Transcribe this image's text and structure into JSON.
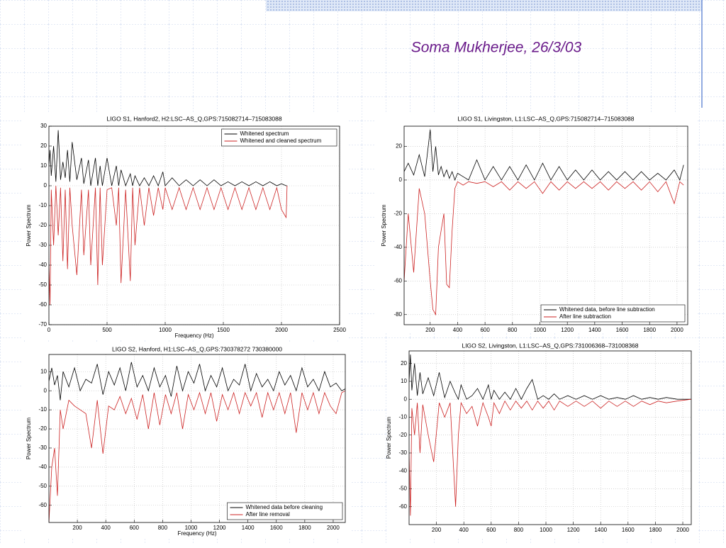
{
  "slide": {
    "title": "Soma Mukherjee, 26/3/03"
  },
  "chart_data": [
    {
      "type": "line",
      "title": "LIGO S1, Hanford2, H2:LSC–AS_Q,GPS:715082714–715083088",
      "xlabel": "Frequency (Hz)",
      "ylabel": "Power Spectrum",
      "x": [
        0,
        10,
        20,
        40,
        60,
        80,
        100,
        120,
        140,
        160,
        180,
        200,
        240,
        280,
        300,
        340,
        360,
        400,
        420,
        440,
        460,
        500,
        540,
        580,
        600,
        620,
        660,
        700,
        720,
        740,
        780,
        820,
        860,
        900,
        940,
        980,
        1000,
        1060,
        1120,
        1180,
        1240,
        1300,
        1360,
        1420,
        1480,
        1540,
        1600,
        1660,
        1720,
        1780,
        1840,
        1900,
        1960,
        2000,
        2040,
        2048
      ],
      "series": [
        {
          "name": "Whitened spectrum",
          "color": "#000000",
          "values": [
            10,
            18,
            5,
            20,
            2,
            28,
            3,
            12,
            4,
            18,
            2,
            22,
            3,
            14,
            1,
            13,
            0,
            14,
            0,
            10,
            0,
            14,
            0,
            10,
            0,
            8,
            0,
            6,
            0,
            5,
            0,
            4,
            0,
            5,
            0,
            7,
            0,
            4,
            0,
            3,
            0,
            3,
            0,
            3,
            0,
            2,
            0,
            2,
            0,
            2,
            0,
            2,
            0,
            1,
            0,
            0
          ]
        },
        {
          "name": "Whitened and cleaned spectrum",
          "color": "#cc2222",
          "values": [
            -40,
            -60,
            -2,
            -30,
            0,
            -25,
            -1,
            -38,
            -2,
            -42,
            -1,
            -20,
            -45,
            -2,
            -35,
            -2,
            -40,
            -1,
            -50,
            -1,
            -40,
            -2,
            -1,
            -20,
            -1,
            -49,
            -2,
            -48,
            -1,
            -30,
            -1,
            -20,
            -1,
            -15,
            -1,
            -12,
            -1,
            -12,
            -1,
            -12,
            -1,
            -12,
            -1,
            -12,
            -1,
            -12,
            -1,
            -12,
            -1,
            -12,
            -1,
            -12,
            -1,
            -12,
            -16,
            0
          ]
        }
      ],
      "xlim": [
        0,
        2500
      ],
      "xticks": [
        0,
        500,
        1000,
        1500,
        2000,
        2500
      ],
      "ylim": [
        -70,
        30
      ],
      "yticks": [
        -70,
        -60,
        -50,
        -40,
        -30,
        -20,
        -10,
        0,
        10,
        20,
        30
      ],
      "grid": true,
      "legend": "upper right"
    },
    {
      "type": "line",
      "title": "LIGO S1, Livingston, L1:LSC–AS_Q,GPS:715082714–715083088",
      "ylabel": "Power Spectrum",
      "x": [
        10,
        40,
        80,
        120,
        160,
        200,
        220,
        240,
        260,
        280,
        300,
        320,
        340,
        360,
        380,
        400,
        440,
        480,
        540,
        600,
        660,
        720,
        780,
        840,
        900,
        960,
        1020,
        1080,
        1140,
        1200,
        1260,
        1320,
        1380,
        1440,
        1500,
        1560,
        1620,
        1680,
        1740,
        1800,
        1860,
        1920,
        1980,
        2020,
        2048
      ],
      "series": [
        {
          "name": "Whitened data, before line subtraction",
          "color": "#000000",
          "values": [
            5,
            10,
            3,
            15,
            2,
            30,
            5,
            20,
            3,
            8,
            2,
            6,
            1,
            5,
            0,
            4,
            2,
            0,
            12,
            0,
            8,
            0,
            8,
            0,
            9,
            0,
            10,
            0,
            8,
            0,
            6,
            0,
            6,
            0,
            5,
            0,
            5,
            0,
            5,
            0,
            4,
            0,
            6,
            0,
            9
          ]
        },
        {
          "name": "After line subtraction",
          "color": "#cc2222",
          "values": [
            -60,
            -20,
            -55,
            -5,
            -20,
            -60,
            -77,
            -80,
            -40,
            -30,
            -20,
            -62,
            -64,
            -30,
            -5,
            -1,
            -3,
            -1,
            -2,
            -1,
            -4,
            -1,
            -6,
            -1,
            -5,
            -1,
            -8,
            -1,
            -6,
            -1,
            -5,
            -1,
            -5,
            -1,
            -6,
            -1,
            -5,
            -1,
            -6,
            -1,
            -7,
            -1,
            -14,
            -1,
            -3
          ]
        }
      ],
      "xlim": [
        10,
        2078
      ],
      "xticks": [
        200,
        400,
        600,
        800,
        1000,
        1200,
        1400,
        1600,
        1800,
        2000
      ],
      "ylim": [
        -86,
        32
      ],
      "yticks": [
        -80,
        -60,
        -40,
        -20,
        0,
        20
      ],
      "grid": true,
      "legend": "lower right"
    },
    {
      "type": "line",
      "title": "LIGO S2, Hanford, H1:LSC–AS_Q,GPS:730378272 730380000",
      "xlabel": "Frequency (Hz)",
      "ylabel": "Power Spectrum",
      "x": [
        0,
        20,
        40,
        60,
        80,
        100,
        140,
        180,
        220,
        260,
        300,
        340,
        380,
        420,
        460,
        500,
        540,
        580,
        620,
        660,
        700,
        740,
        780,
        820,
        860,
        900,
        940,
        980,
        1020,
        1060,
        1100,
        1140,
        1180,
        1220,
        1260,
        1300,
        1340,
        1380,
        1420,
        1460,
        1500,
        1540,
        1580,
        1620,
        1660,
        1700,
        1740,
        1780,
        1820,
        1860,
        1900,
        1940,
        1980,
        2020,
        2060,
        2085
      ],
      "series": [
        {
          "name": "Whitened data before cleaning",
          "color": "#000000",
          "values": [
            5,
            12,
            3,
            8,
            -5,
            10,
            2,
            12,
            0,
            6,
            4,
            14,
            -2,
            10,
            3,
            12,
            0,
            15,
            2,
            8,
            0,
            12,
            2,
            8,
            -3,
            13,
            0,
            10,
            4,
            14,
            0,
            8,
            2,
            12,
            0,
            6,
            3,
            14,
            0,
            9,
            2,
            6,
            0,
            10,
            3,
            8,
            0,
            12,
            2,
            6,
            0,
            10,
            2,
            4,
            0,
            1
          ]
        },
        {
          "name": "After line removal",
          "color": "#cc2222",
          "values": [
            -69,
            -40,
            -30,
            -55,
            -10,
            -20,
            -5,
            -8,
            -10,
            -12,
            -30,
            -5,
            -33,
            -8,
            -10,
            -3,
            -12,
            -4,
            -15,
            -2,
            -20,
            -1,
            -18,
            -2,
            -12,
            -1,
            -20,
            -2,
            -10,
            -1,
            -12,
            -1,
            -16,
            -2,
            -10,
            -1,
            -12,
            -1,
            -8,
            -1,
            -14,
            -1,
            -10,
            -1,
            -12,
            -1,
            -22,
            -1,
            -10,
            -1,
            -12,
            -1,
            -8,
            -12,
            -1,
            0
          ]
        }
      ],
      "xlim": [
        0,
        2085
      ],
      "xticks": [
        200,
        400,
        600,
        800,
        1000,
        1200,
        1400,
        1600,
        1800,
        2000
      ],
      "ylim": [
        -69,
        19
      ],
      "yticks": [
        -60,
        -50,
        -40,
        -30,
        -20,
        -10,
        0,
        10
      ],
      "grid": true,
      "legend": "lower right"
    },
    {
      "type": "line",
      "title": "LIGO S2, Livingston, L1:LSC–AS_Q,GPS:731006368–731008368",
      "ylabel": "Power Spectrum",
      "x": [
        0,
        10,
        20,
        40,
        60,
        80,
        100,
        140,
        180,
        220,
        260,
        300,
        340,
        360,
        380,
        420,
        460,
        500,
        540,
        580,
        600,
        620,
        660,
        700,
        740,
        780,
        820,
        860,
        900,
        940,
        980,
        1020,
        1060,
        1100,
        1160,
        1220,
        1280,
        1340,
        1400,
        1460,
        1520,
        1580,
        1640,
        1700,
        1760,
        1820,
        1880,
        1960,
        2062
      ],
      "series": [
        {
          "color": "#000000",
          "values": [
            10,
            25,
            5,
            20,
            2,
            15,
            3,
            12,
            2,
            15,
            1,
            10,
            3,
            0,
            8,
            0,
            2,
            6,
            0,
            8,
            0,
            5,
            0,
            4,
            0,
            6,
            0,
            6,
            11,
            0,
            2,
            0,
            3,
            0,
            2,
            0,
            2,
            0,
            2,
            0,
            1,
            0,
            2,
            0,
            1,
            0,
            1,
            0,
            0
          ]
        },
        {
          "color": "#cc2222",
          "values": [
            -30,
            -65,
            -5,
            -20,
            -2,
            -30,
            -3,
            -20,
            -35,
            -2,
            -10,
            -2,
            -60,
            -20,
            -2,
            -8,
            -4,
            -15,
            -2,
            -10,
            -15,
            -2,
            -8,
            -1,
            -6,
            -1,
            -5,
            -1,
            -6,
            -1,
            -5,
            -1,
            -6,
            -1,
            -4,
            -1,
            -4,
            -1,
            -5,
            -1,
            -4,
            -1,
            -4,
            -1,
            -3,
            -1,
            -2,
            -1,
            0
          ]
        }
      ],
      "xlim": [
        0,
        2062
      ],
      "xticks": [
        200,
        400,
        600,
        800,
        1000,
        1200,
        1400,
        1600,
        1800,
        2000
      ],
      "ylim": [
        -70,
        27
      ],
      "yticks": [
        -60,
        -50,
        -40,
        -30,
        -20,
        -10,
        0,
        10,
        20
      ],
      "grid": true
    }
  ]
}
